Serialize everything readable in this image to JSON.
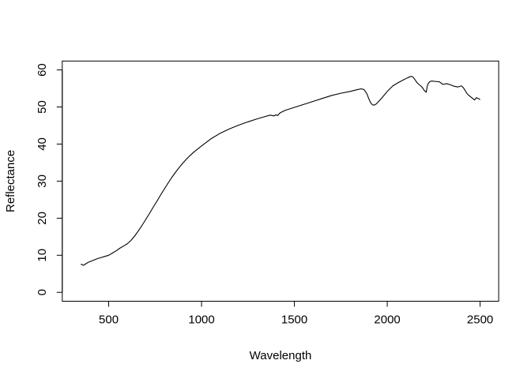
{
  "chart_data": {
    "type": "line",
    "title": "",
    "xlabel": "Wavelength",
    "ylabel": "Reflectance",
    "xlim": [
      250,
      2600
    ],
    "ylim": [
      -2.4,
      62.4
    ],
    "xticks": [
      500,
      1000,
      1500,
      2000,
      2500
    ],
    "yticks": [
      0,
      10,
      20,
      30,
      40,
      50,
      60
    ],
    "grid": false,
    "legend": "none",
    "line_color": "#000000",
    "series": [
      {
        "x": [
          350,
          365,
          380,
          390,
          400,
          420,
          440,
          460,
          480,
          500,
          520,
          540,
          560,
          580,
          600,
          620,
          640,
          660,
          680,
          700,
          720,
          740,
          760,
          780,
          800,
          820,
          840,
          860,
          880,
          900,
          920,
          940,
          960,
          980,
          1000,
          1050,
          1100,
          1150,
          1200,
          1250,
          1300,
          1340,
          1370,
          1390,
          1400,
          1410,
          1420,
          1430,
          1450,
          1500,
          1550,
          1600,
          1650,
          1700,
          1750,
          1800,
          1840,
          1860,
          1875,
          1890,
          1900,
          1910,
          1920,
          1930,
          1940,
          1950,
          1970,
          2000,
          2030,
          2060,
          2090,
          2110,
          2130,
          2140,
          2150,
          2160,
          2170,
          2180,
          2190,
          2200,
          2210,
          2215,
          2220,
          2230,
          2240,
          2260,
          2280,
          2300,
          2320,
          2340,
          2360,
          2380,
          2400,
          2410,
          2420,
          2430,
          2440,
          2450,
          2460,
          2470,
          2480,
          2490,
          2500
        ],
        "y": [
          7.6,
          7.3,
          7.8,
          8.1,
          8.3,
          8.7,
          9.1,
          9.4,
          9.7,
          10.0,
          10.6,
          11.2,
          11.9,
          12.5,
          13.1,
          14.0,
          15.2,
          16.6,
          18.1,
          19.7,
          21.3,
          23.0,
          24.6,
          26.3,
          27.9,
          29.5,
          31.0,
          32.4,
          33.7,
          34.9,
          36.0,
          37.0,
          37.9,
          38.7,
          39.5,
          41.4,
          42.9,
          44.1,
          45.1,
          46.0,
          46.8,
          47.4,
          47.8,
          47.6,
          47.9,
          47.7,
          48.3,
          48.6,
          49.1,
          49.9,
          50.7,
          51.5,
          52.3,
          53.1,
          53.7,
          54.2,
          54.7,
          54.9,
          54.7,
          53.6,
          52.3,
          51.2,
          50.6,
          50.5,
          50.8,
          51.3,
          52.4,
          54.2,
          55.7,
          56.6,
          57.4,
          57.9,
          58.3,
          58.0,
          57.3,
          56.6,
          56.1,
          55.7,
          55.2,
          54.4,
          54.0,
          55.5,
          56.3,
          56.9,
          57.0,
          56.9,
          56.8,
          56.1,
          56.3,
          56.0,
          55.6,
          55.4,
          55.7,
          55.2,
          54.4,
          53.6,
          53.1,
          52.7,
          52.3,
          51.9,
          52.5,
          52.3,
          52.0
        ]
      }
    ]
  }
}
